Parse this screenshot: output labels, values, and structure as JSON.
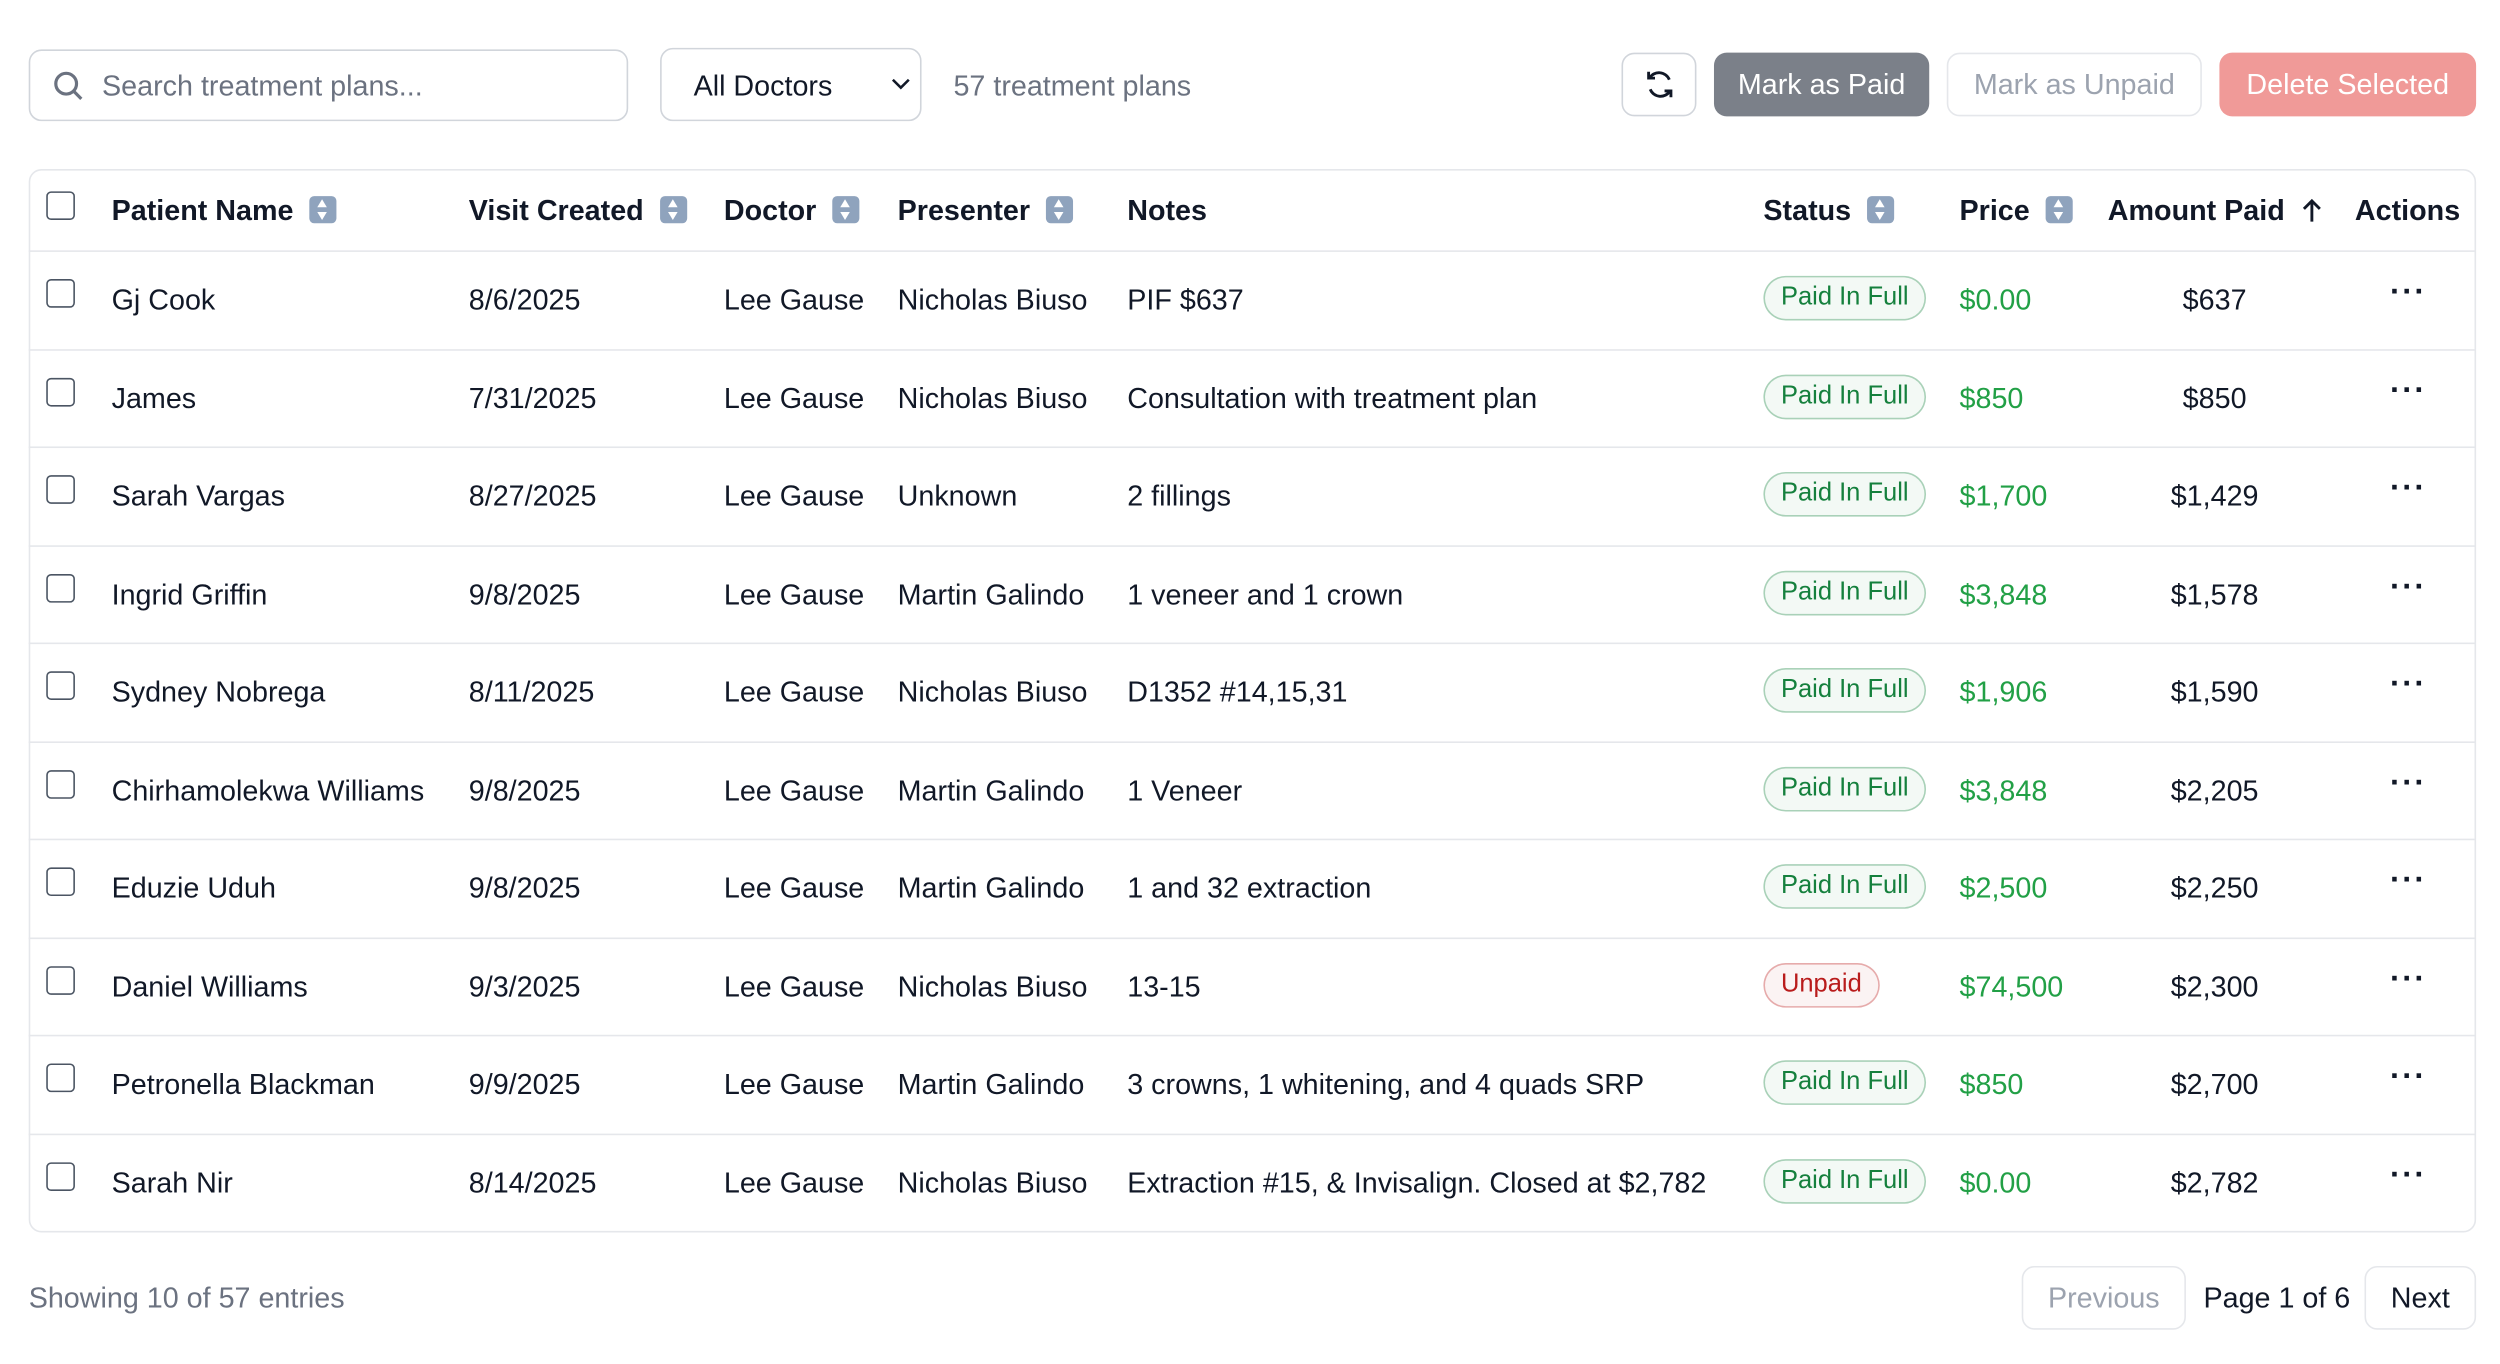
{
  "toolbar": {
    "search_placeholder": "Search treatment plans...",
    "doctor_filter": "All Doctors",
    "count": "57 treatment plans",
    "mark_paid": "Mark as Paid",
    "mark_unpaid": "Mark as Unpaid",
    "delete": "Delete Selected"
  },
  "table": {
    "headers": [
      "Patient Name",
      "Visit Created",
      "Doctor",
      "Presenter",
      "Notes",
      "Status",
      "Price",
      "Amount Paid",
      "Actions"
    ],
    "status_colors": {
      "Paid In Full": "#15803d",
      "Unpaid": "#b91c1c"
    },
    "rows": [
      [
        "Gj Cook",
        "8/6/2025",
        "Lee Gause",
        "Nicholas Biuso",
        "PIF $637",
        "Paid In Full",
        "$0.00",
        "$637"
      ],
      [
        "James",
        "7/31/2025",
        "Lee Gause",
        "Nicholas Biuso",
        "Consultation with treatment plan",
        "Paid In Full",
        "$850",
        "$850"
      ],
      [
        "Sarah Vargas",
        "8/27/2025",
        "Lee Gause",
        "Unknown",
        "2 fillings",
        "Paid In Full",
        "$1,700",
        "$1,429"
      ],
      [
        "Ingrid Griffin",
        "9/8/2025",
        "Lee Gause",
        "Martin Galindo",
        "1 veneer and 1 crown",
        "Paid In Full",
        "$3,848",
        "$1,578"
      ],
      [
        "Sydney Nobrega",
        "8/11/2025",
        "Lee Gause",
        "Nicholas Biuso",
        "D1352 #14,15,31",
        "Paid In Full",
        "$1,906",
        "$1,590"
      ],
      [
        "Chirhamolekwa Williams",
        "9/8/2025",
        "Lee Gause",
        "Martin Galindo",
        "1 Veneer",
        "Paid In Full",
        "$3,848",
        "$2,205"
      ],
      [
        "Eduzie Uduh",
        "9/8/2025",
        "Lee Gause",
        "Martin Galindo",
        "1 and 32 extraction",
        "Paid In Full",
        "$2,500",
        "$2,250"
      ],
      [
        "Daniel Williams",
        "9/3/2025",
        "Lee Gause",
        "Nicholas Biuso",
        "13-15",
        "Unpaid",
        "$74,500",
        "$2,300"
      ],
      [
        "Petronella Blackman",
        "9/9/2025",
        "Lee Gause",
        "Martin Galindo",
        "3 crowns, 1 whitening, and 4 quads SRP",
        "Paid In Full",
        "$850",
        "$2,700"
      ],
      [
        "Sarah Nir",
        "8/14/2025",
        "Lee Gause",
        "Nicholas Biuso",
        "Extraction #15, & Invisalign. Closed at $2,782",
        "Paid In Full",
        "$0.00",
        "$2,782"
      ]
    ]
  },
  "footer": {
    "showing": "Showing 10 of 57 entries",
    "previous": "Previous",
    "page": "Page 1 of 6",
    "next": "Next"
  }
}
